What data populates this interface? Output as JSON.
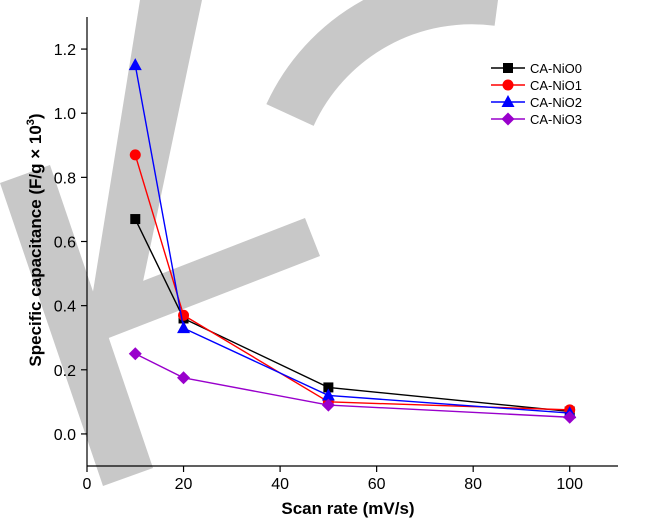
{
  "chart_data": {
    "type": "line",
    "title": "",
    "xlabel": "Scan rate (mV/s)",
    "ylabel_main": "Specific capacitance (F/g × 10",
    "ylabel_sup": "3",
    "ylabel_close": ")",
    "xlim": [
      0,
      110
    ],
    "ylim": [
      -0.1,
      1.3
    ],
    "xticks": [
      0,
      20,
      40,
      60,
      80,
      100
    ],
    "xtick_labels": [
      "0",
      "20",
      "40",
      "60",
      "80",
      "100"
    ],
    "yticks": [
      0.0,
      0.2,
      0.4,
      0.6,
      0.8,
      1.0,
      1.2
    ],
    "ytick_labels": [
      "0.0",
      "0.2",
      "0.4",
      "0.6",
      "0.8",
      "1.0",
      "1.2"
    ],
    "grid": false,
    "legend_position": "top-right",
    "x": [
      10,
      20,
      50,
      100
    ],
    "series": [
      {
        "name": "CA-NiO0",
        "values": [
          0.67,
          0.36,
          0.145,
          0.07
        ],
        "color": "#000000",
        "marker": "square"
      },
      {
        "name": "CA-NiO1",
        "values": [
          0.87,
          0.37,
          0.1,
          0.075
        ],
        "color": "#ff0000",
        "marker": "circle"
      },
      {
        "name": "CA-NiO2",
        "values": [
          1.15,
          0.33,
          0.12,
          0.065
        ],
        "color": "#0000ff",
        "marker": "triangle"
      },
      {
        "name": "CA-NiO3",
        "values": [
          0.25,
          0.175,
          0.09,
          0.052
        ],
        "color": "#9900cc",
        "marker": "diamond"
      }
    ],
    "watermark_color": "#c8c8c8"
  }
}
